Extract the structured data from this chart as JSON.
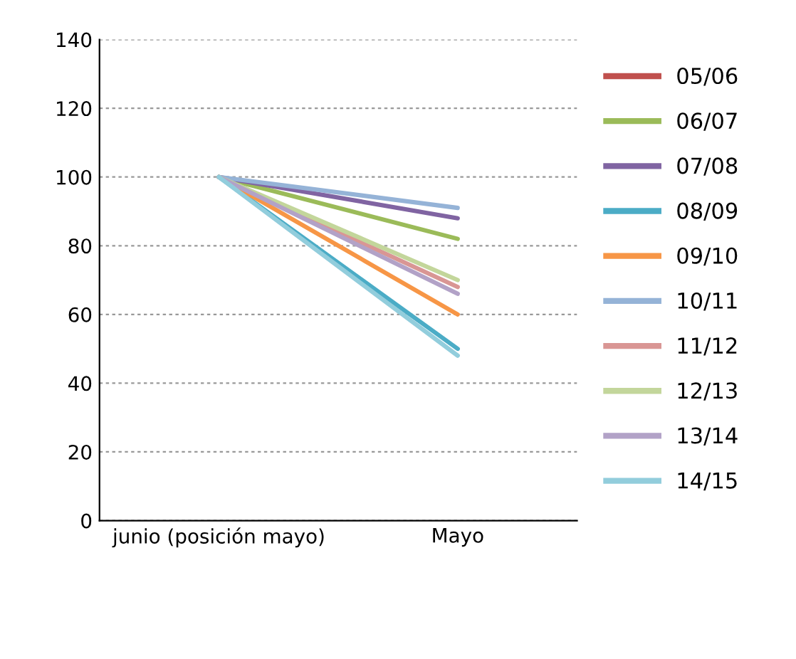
{
  "chart_data": {
    "type": "line",
    "categories": [
      "junio (posición mayo)",
      "Mayo"
    ],
    "series": [
      {
        "name": "05/06",
        "color": "#c0504d",
        "values": [
          null,
          null
        ]
      },
      {
        "name": "06/07",
        "color": "#9bbb59",
        "values": [
          100,
          82
        ]
      },
      {
        "name": "07/08",
        "color": "#8064a2",
        "values": [
          100,
          88
        ]
      },
      {
        "name": "08/09",
        "color": "#4bacc6",
        "values": [
          100,
          50
        ]
      },
      {
        "name": "09/10",
        "color": "#f79646",
        "values": [
          100,
          60
        ]
      },
      {
        "name": "10/11",
        "color": "#95b3d7",
        "values": [
          100,
          91
        ]
      },
      {
        "name": "11/12",
        "color": "#d99694",
        "values": [
          100,
          68
        ]
      },
      {
        "name": "12/13",
        "color": "#c3d69b",
        "values": [
          100,
          70
        ]
      },
      {
        "name": "13/14",
        "color": "#b2a2c7",
        "values": [
          100,
          66
        ]
      },
      {
        "name": "14/15",
        "color": "#92cddc",
        "values": [
          100,
          48
        ]
      }
    ],
    "ylim": [
      0,
      140
    ],
    "yticks": [
      0,
      20,
      40,
      60,
      80,
      100,
      120,
      140
    ],
    "grid": "y",
    "legend": "right",
    "marker": "none",
    "line_style": "solid"
  }
}
